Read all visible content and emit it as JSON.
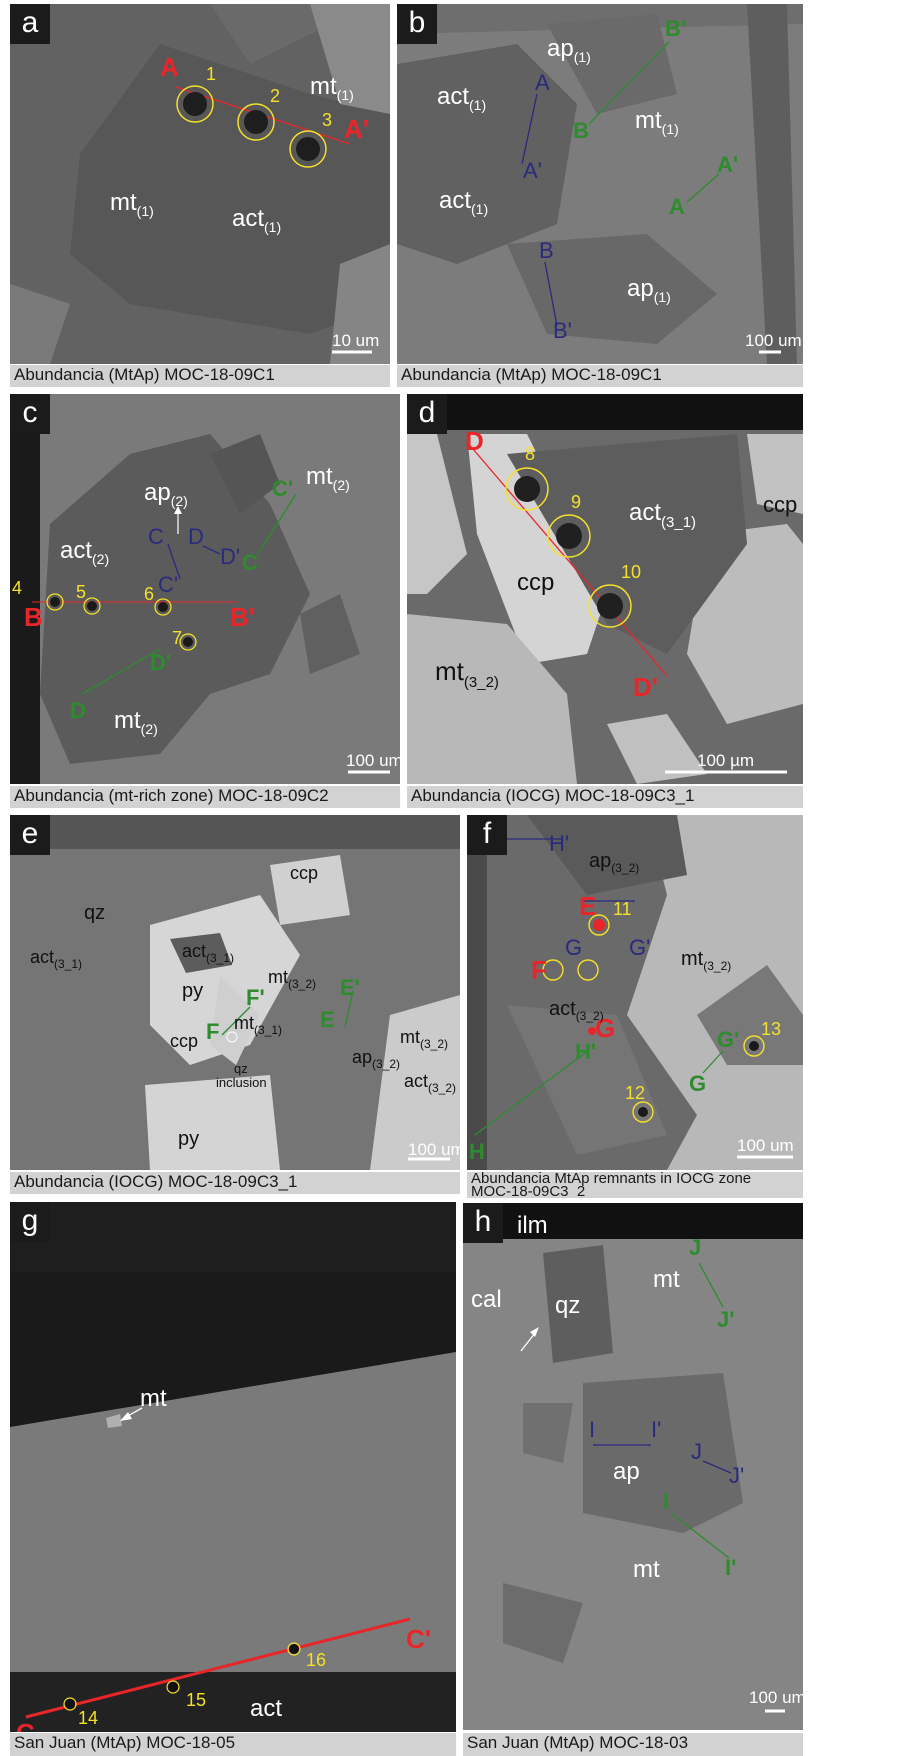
{
  "panels": {
    "a": {
      "letter": "a",
      "caption": "Abundancia (MtAp) MOC-18-09C1",
      "labels": {
        "mt1": "mt",
        "mt1_sub": "(1)",
        "mt2": "mt",
        "mt2_sub": "(1)",
        "act": "act",
        "act_sub": "(1)"
      },
      "profile": {
        "start": "A",
        "end": "A'"
      },
      "spots": [
        "1",
        "2",
        "3"
      ],
      "scale": "10 um"
    },
    "b": {
      "letter": "b",
      "caption": "Abundancia (MtAp) MOC-18-09C1",
      "labels": {
        "ap1": "ap",
        "ap1_sub": "(1)",
        "act1": "act",
        "act1_sub": "(1)",
        "mt": "mt",
        "mt_sub": "(1)",
        "act2": "act",
        "act2_sub": "(1)",
        "ap2": "ap",
        "ap2_sub": "(1)"
      },
      "profiles": {
        "navy_a": "A",
        "navy_a2": "A'",
        "green_b2": "B'",
        "green_b": "B",
        "green_a2": "A'",
        "green_a": "A",
        "navy_b": "B",
        "navy_b2": "B'"
      },
      "scale": "100 um"
    },
    "c": {
      "letter": "c",
      "caption": "Abundancia (mt-rich zone) MOC-18-09C2",
      "labels": {
        "ap": "ap",
        "ap_sub": "(2)",
        "mt1": "mt",
        "mt1_sub": "(2)",
        "act": "act",
        "act_sub": "(2)",
        "mt2": "mt",
        "mt2_sub": "(2)"
      },
      "profiles": {
        "red_b": "B",
        "red_b2": "B'",
        "green_c2": "C'",
        "green_c": "C",
        "green_d2": "D'",
        "green_d": "D",
        "navy_c": "C",
        "navy_c2": "C'",
        "navy_d": "D",
        "navy_d2": "D'"
      },
      "spots": [
        "4",
        "5",
        "6",
        "7"
      ],
      "scale": "100 um"
    },
    "d": {
      "letter": "d",
      "caption": "Abundancia (IOCG) MOC-18-09C3_1",
      "labels": {
        "act": "act",
        "act_sub": "(3_1)",
        "ccp1": "ccp",
        "ccp2": "ccp",
        "mt": "mt",
        "mt_sub": "(3_2)"
      },
      "profile": {
        "start": "D",
        "end": "D'"
      },
      "spots": [
        "8",
        "9",
        "10"
      ],
      "scale": "100 µm"
    },
    "e": {
      "letter": "e",
      "caption": "Abundancia (IOCG) MOC-18-09C3_1",
      "labels": {
        "qz": "qz",
        "act1": "act",
        "act1_sub": "(3_1)",
        "act2": "act",
        "act2_sub": "(3_1)",
        "py1": "py",
        "py2": "py",
        "ccp1": "ccp",
        "ccp2": "ccp",
        "mt1": "mt",
        "mt1_sub": "(3_2)",
        "mt2": "mt",
        "mt2_sub": "(3_1)",
        "mt3": "mt",
        "mt3_sub": "(3_2)",
        "ap": "ap",
        "ap_sub": "(3_2)",
        "act3": "act",
        "act3_sub": "(3_2)",
        "qz_inc1": "qz",
        "qz_inc2": "inclusion"
      },
      "profiles": {
        "green_e2": "E'",
        "green_e": "E",
        "green_f2": "F'",
        "green_f": "F"
      },
      "scale": "100 um"
    },
    "f": {
      "letter": "f",
      "caption_line1": "Abundancia MtAp remnants in IOCG zone",
      "caption_line2": "MOC-18-09C3_2",
      "labels": {
        "ap": "ap",
        "ap_sub": "(3_2)",
        "mt": "mt",
        "mt_sub": "(3_2)",
        "act": "act",
        "act_sub": "(3_2)"
      },
      "profiles": {
        "navy_h": "H",
        "navy_h2": "H'",
        "red_e": "E",
        "red_f": "F",
        "red_g": "G",
        "navy_g": "G",
        "navy_g2": "G'",
        "green_g2": "G'",
        "green_g": "G",
        "green_h2": "H'",
        "green_h": "H"
      },
      "spots": [
        "11",
        "12",
        "13"
      ],
      "scale": "100 um"
    },
    "g": {
      "letter": "g",
      "caption": "San Juan (MtAp) MOC-18-05",
      "labels": {
        "mt": "mt",
        "act": "act"
      },
      "profile": {
        "start": "C",
        "end": "C'"
      },
      "spots": [
        "14",
        "15",
        "16"
      ],
      "scale": "100 um"
    },
    "h": {
      "letter": "h",
      "caption": "San Juan (MtAp) MOC-18-03",
      "labels": {
        "ilm": "ilm",
        "cal": "cal",
        "qz": "qz",
        "mt1": "mt",
        "ap": "ap",
        "mt2": "mt"
      },
      "profiles": {
        "green_j": "J",
        "green_j2": "J'",
        "navy_i": "I",
        "navy_i2": "I'",
        "navy_j": "J",
        "navy_j2": "J'",
        "green_i": "I",
        "green_i2": "I'"
      },
      "scale": "100 um"
    }
  },
  "colors": {
    "red": "#e8262a",
    "green": "#2e8b2e",
    "navy": "#2a2a80",
    "yellow": "#f5e02a"
  }
}
